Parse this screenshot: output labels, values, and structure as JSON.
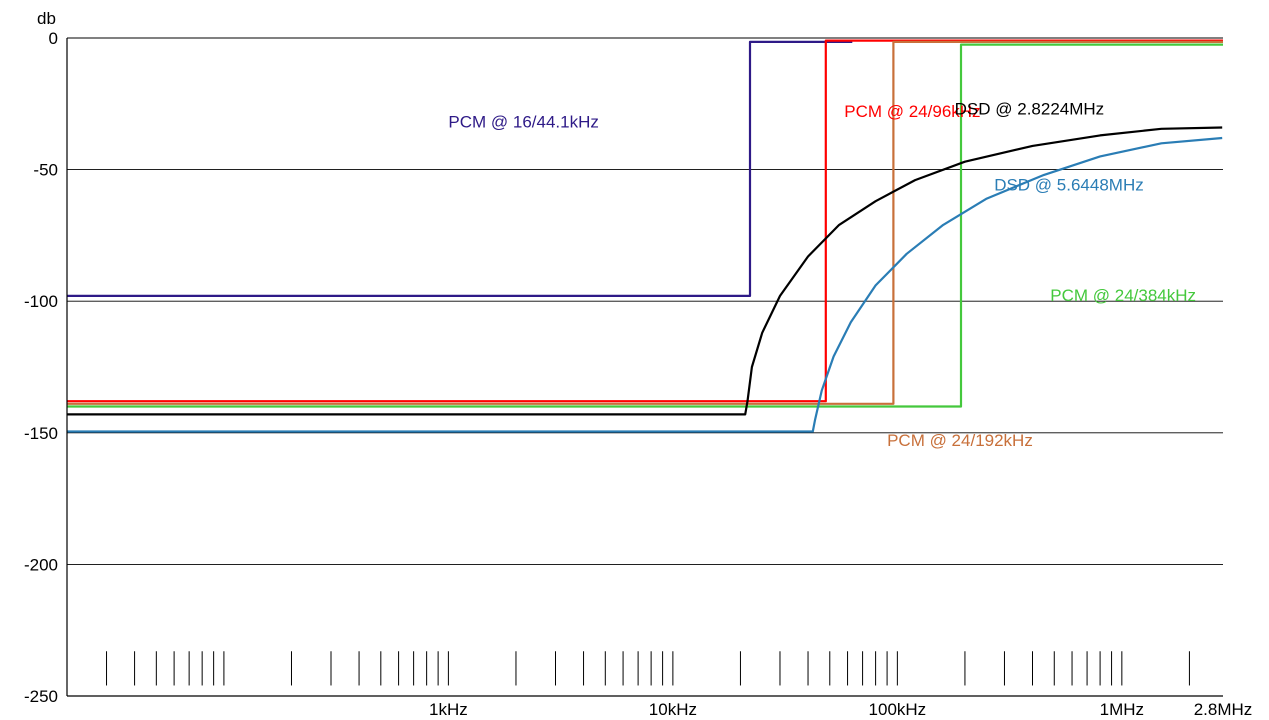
{
  "chart_data": {
    "type": "line",
    "title": "",
    "xlabel": "",
    "ylabel": "db",
    "x_scale": "log",
    "xlim": [
      20,
      2822400
    ],
    "ylim": [
      -250,
      0
    ],
    "y_ticks": [
      0,
      -50,
      -100,
      -150,
      -200,
      -250
    ],
    "y_tick_labels": [
      "0",
      "-50",
      "-100",
      "-150",
      "-200",
      "-250"
    ],
    "x_tick_labels": [
      {
        "value": 1000,
        "label": "1kHz"
      },
      {
        "value": 10000,
        "label": "10kHz"
      },
      {
        "value": 100000,
        "label": "100kHz"
      },
      {
        "value": 1000000,
        "label": "1MHz"
      },
      {
        "value": 2822400,
        "label": "2.8MHz"
      }
    ],
    "grid": "horizontal",
    "series": [
      {
        "name": "PCM @ 16/44.1kHz",
        "color": "#2e1a87",
        "label_x": 1000,
        "label_y": -34,
        "points": [
          [
            20,
            -98
          ],
          [
            22050,
            -98
          ],
          [
            22050,
            -1.5
          ],
          [
            63000,
            -1.5
          ]
        ]
      },
      {
        "name": "PCM @ 24/96kHz",
        "color": "#ff0000",
        "label_x": 58000,
        "label_y": -30,
        "points": [
          [
            20,
            -138
          ],
          [
            48000,
            -138
          ],
          [
            48000,
            -1
          ],
          [
            2822400,
            -1
          ]
        ]
      },
      {
        "name": "PCM @ 24/192kHz",
        "color": "#c8703a",
        "label_x": 90000,
        "label_y": -155,
        "points": [
          [
            20,
            -139
          ],
          [
            96000,
            -139
          ],
          [
            96000,
            -1.5
          ],
          [
            2822400,
            -1.5
          ]
        ]
      },
      {
        "name": "PCM @ 24/384kHz",
        "color": "#44c83c",
        "label_x": 480000,
        "label_y": -100,
        "points": [
          [
            20,
            -140
          ],
          [
            192000,
            -140
          ],
          [
            192000,
            -2.5
          ],
          [
            2822400,
            -2.5
          ]
        ]
      },
      {
        "name": "DSD @ 2.8224MHz",
        "color": "#000000",
        "label_x": 180000,
        "label_y": -29,
        "points": [
          [
            20,
            -143
          ],
          [
            21000,
            -143
          ],
          [
            21500,
            -138
          ],
          [
            22500,
            -125
          ],
          [
            25000,
            -112
          ],
          [
            30000,
            -98
          ],
          [
            40000,
            -83
          ],
          [
            55000,
            -71
          ],
          [
            80000,
            -62
          ],
          [
            120000,
            -54
          ],
          [
            200000,
            -47
          ],
          [
            400000,
            -41
          ],
          [
            800000,
            -37
          ],
          [
            1500000,
            -34.5
          ],
          [
            2800000,
            -34
          ]
        ]
      },
      {
        "name": "DSD @ 5.6448MHz",
        "color": "#2a7db5",
        "label_x": 270000,
        "label_y": -58,
        "points": [
          [
            20,
            -149.5
          ],
          [
            42000,
            -149.5
          ],
          [
            43000,
            -145
          ],
          [
            46000,
            -134
          ],
          [
            52000,
            -121
          ],
          [
            62000,
            -108
          ],
          [
            80000,
            -94
          ],
          [
            110000,
            -82
          ],
          [
            160000,
            -71
          ],
          [
            250000,
            -61
          ],
          [
            450000,
            -52
          ],
          [
            800000,
            -45
          ],
          [
            1500000,
            -40
          ],
          [
            2800000,
            -38
          ]
        ]
      }
    ]
  }
}
